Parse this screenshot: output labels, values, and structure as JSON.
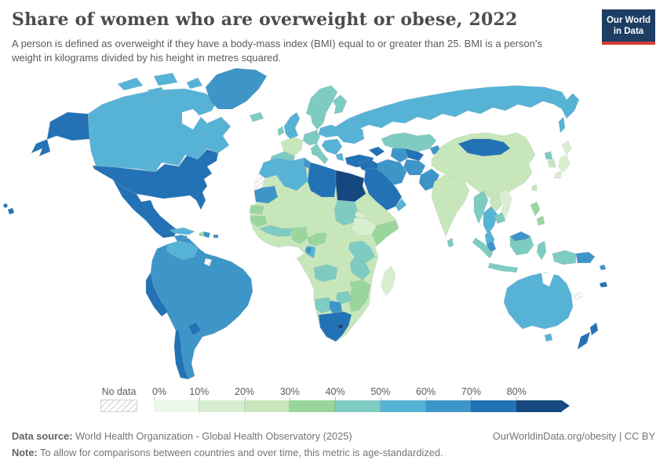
{
  "header": {
    "title": "Share of women who are overweight or obese, 2022",
    "subtitle": "A person is defined as overweight if they have a body-mass index (BMI) equal to or greater than 25. BMI is a person's weight in kilograms divided by his height in metres squared.",
    "logo": {
      "line1": "Our World",
      "line2": "in Data",
      "bg_color": "#1d3d63",
      "accent_color": "#d73c34"
    }
  },
  "legend": {
    "no_data_label": "No data",
    "ticks": [
      "0%",
      "10%",
      "20%",
      "30%",
      "40%",
      "50%",
      "60%",
      "70%",
      "80%"
    ],
    "bins": [
      {
        "label": "0-10%",
        "color": "#ecf8e8"
      },
      {
        "label": "10-20%",
        "color": "#d8efcf"
      },
      {
        "label": "20-30%",
        "color": "#c7e7bb"
      },
      {
        "label": "30-40%",
        "color": "#9ad59c"
      },
      {
        "label": "40-50%",
        "color": "#7ecbc1"
      },
      {
        "label": "50-60%",
        "color": "#57b3d6"
      },
      {
        "label": "60-70%",
        "color": "#3e95c8"
      },
      {
        "label": "70-80%",
        "color": "#2272b5"
      },
      {
        "label": "80%+",
        "color": "#16487f"
      }
    ]
  },
  "chart_data": {
    "type": "heatmap",
    "subtype": "world-choropleth-map",
    "title": "Share of women who are overweight or obese, 2022",
    "unit": "%",
    "year": 2022,
    "scale_bins": [
      "0-10%",
      "10-20%",
      "20-30%",
      "30-40%",
      "40-50%",
      "50-60%",
      "60-70%",
      "70-80%",
      "80%+"
    ],
    "legend_position": "bottom",
    "countries": {
      "United States": "70-80%",
      "Canada": "50-60%",
      "Greenland": "60-70%",
      "Iceland": "40-50%",
      "Mexico": "70-80%",
      "Central America": "60-70%",
      "Cuba": "50-60%",
      "Haiti": "30-40%",
      "Dominican Republic": "60-70%",
      "Jamaica": "60-70%",
      "Puerto Rico": "60-70%",
      "Venezuela": "50-60%",
      "Colombia": "60-70%",
      "Ecuador": "60-70%",
      "Brazil": "60-70%",
      "Peru": "70-80%",
      "Bolivia": "60-70%",
      "Paraguay": "70-80%",
      "Chile": "70-80%",
      "Argentina": "60-70%",
      "Uruguay": "60-70%",
      "Guyana": "60-70%",
      "United Kingdom": "50-60%",
      "Ireland": "40-50%",
      "Norway and Sweden": "40-50%",
      "Finland": "40-50%",
      "Denmark": "40-50%",
      "France": "20-30%",
      "Spain and Portugal": "40-50%",
      "Germany": "40-50%",
      "Italy": "40-50%",
      "Poland and Baltics": "50-60%",
      "Ukraine": "50-60%",
      "Belarus": "50-60%",
      "Balkans": "50-60%",
      "Greece": "50-60%",
      "Turkey": "70-80%",
      "Caucasus": "70-80%",
      "Russia": "50-60%",
      "Kazakhstan": "40-50%",
      "Uzbekistan": "70-80%",
      "Turkmenistan": "60-70%",
      "Kyrgyzstan": "60-70%",
      "Iran": "60-70%",
      "Afghanistan": "60-70%",
      "Pakistan": "60-70%",
      "Iraq and Syria": "70-80%",
      "Saudi Arabia": "70-80%",
      "Yemen": "40-50%",
      "Oman": "50-60%",
      "Egypt": "80%+",
      "Libya": "70-80%",
      "Tunisia": "60-70%",
      "Algeria": "50-60%",
      "Morocco": "50-60%",
      "Mauritania": "60-70%",
      "Sahel and Central Africa": "20-30%",
      "Senegal": "30-40%",
      "Guinea": "30-40%",
      "Ghana and Ivory Coast": "40-50%",
      "Nigeria": "30-40%",
      "Cameroon": "30-40%",
      "Congo": "50-60%",
      "Gabon": "60-70%",
      "Sudan": "40-50%",
      "Eritrea": "10-20%",
      "Ethiopia": "10-20%",
      "Somalia": "30-40%",
      "Kenya and Uganda": "40-50%",
      "Tanzania": "40-50%",
      "Angola": "40-50%",
      "Zambia": "20-30%",
      "Mozambique": "30-40%",
      "Zimbabwe": "40-50%",
      "Namibia": "40-50%",
      "Botswana": "60-70%",
      "South Africa": "70-80%",
      "Lesotho": "80%+",
      "Madagascar": "10-20%",
      "India": "20-30%",
      "Nepal": "20-30%",
      "Bangladesh": "20-30%",
      "Sri Lanka": "40-50%",
      "China": "20-30%",
      "Mongolia": "70-80%",
      "North Korea": "40-50%",
      "South Korea": "20-30%",
      "Japan": "10-20%",
      "Taiwan": "20-30%",
      "Myanmar": "40-50%",
      "Thailand": "50-60%",
      "Laos": "20-30%",
      "Vietnam": "10-20%",
      "Cambodia": "40-50%",
      "Malaysia": "60-70%",
      "Indonesia": "40-50%",
      "Philippines": "30-40%",
      "Papua New Guinea": "60-70%",
      "Australia": "50-60%",
      "New Zealand": "70-80%",
      "Fiji": "70-80%",
      "Solomon Islands": "60-70%"
    },
    "no_data": [
      "Western Sahara",
      "French Guiana",
      "New Caledonia"
    ]
  },
  "footer": {
    "source_label": "Data source:",
    "source_text": " World Health Organization - Global Health Observatory (2025)",
    "right_text": "OurWorldinData.org/obesity | CC BY",
    "note_label": "Note:",
    "note_text": " To allow for comparisons between countries and over time, this metric is age-standardized."
  }
}
